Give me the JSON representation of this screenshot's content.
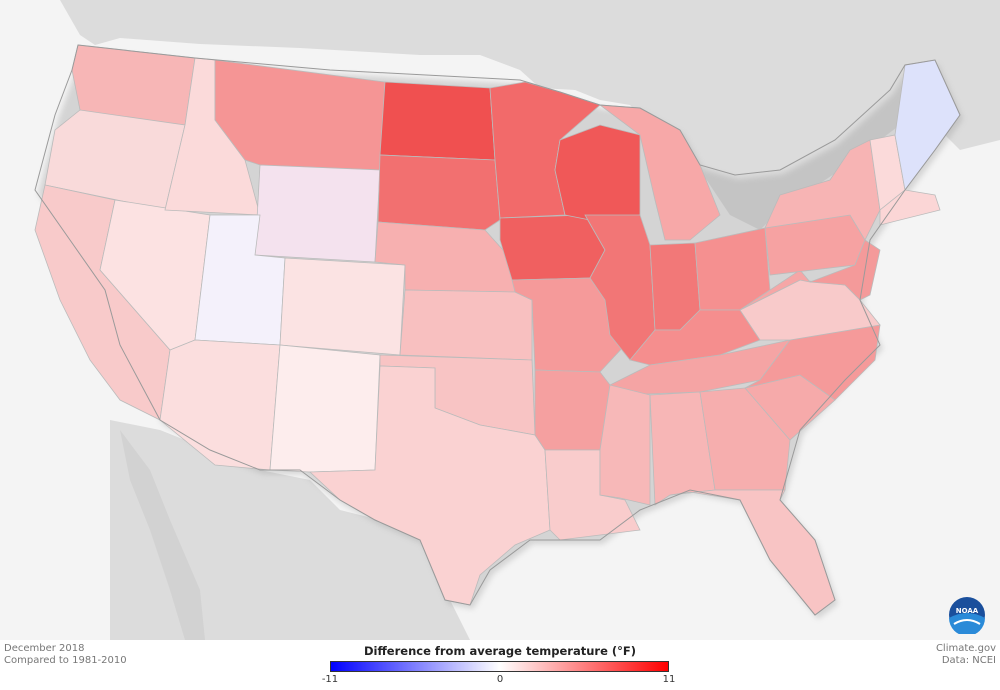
{
  "map": {
    "subject": "United States",
    "legend": {
      "title": "Difference from average temperature (°F)",
      "min_label": "-11",
      "mid_label": "0",
      "max_label": "11",
      "colors": {
        "low": "#0000ff",
        "mid": "#ffffff",
        "high": "#ff0000"
      }
    },
    "period": "December 2018",
    "baseline": "Compared to 1981-2010",
    "source_site": "Climate.gov",
    "source_data": "Data: NCEI",
    "logo_text": "NOAA"
  }
}
